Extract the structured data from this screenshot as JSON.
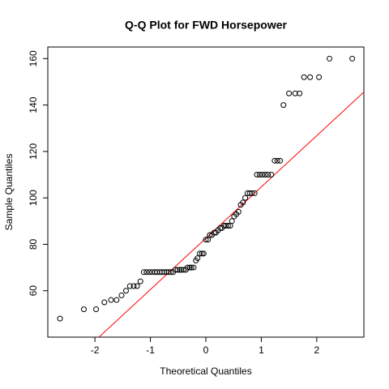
{
  "chart_data": {
    "type": "scatter",
    "title": "Q-Q Plot for FWD Horsepower",
    "xlabel": "Theoretical Quantiles",
    "ylabel": "Sample Quantiles",
    "x": [
      -2.63,
      -2.2,
      -1.98,
      -1.83,
      -1.71,
      -1.61,
      -1.52,
      -1.44,
      -1.37,
      -1.3,
      -1.24,
      -1.18,
      -1.12,
      -1.07,
      -1.02,
      -0.97,
      -0.92,
      -0.88,
      -0.83,
      -0.79,
      -0.75,
      -0.71,
      -0.67,
      -0.63,
      -0.59,
      -0.55,
      -0.51,
      -0.47,
      -0.44,
      -0.4,
      -0.36,
      -0.33,
      -0.29,
      -0.26,
      -0.22,
      -0.18,
      -0.15,
      -0.11,
      -0.07,
      -0.04,
      0.0,
      0.04,
      0.07,
      0.11,
      0.15,
      0.18,
      0.22,
      0.26,
      0.29,
      0.33,
      0.36,
      0.4,
      0.44,
      0.47,
      0.51,
      0.55,
      0.59,
      0.63,
      0.67,
      0.71,
      0.75,
      0.79,
      0.83,
      0.88,
      0.92,
      0.97,
      1.02,
      1.07,
      1.12,
      1.18,
      1.24,
      1.29,
      1.34,
      1.4,
      1.5,
      1.61,
      1.69,
      1.77,
      1.88,
      2.04,
      2.23,
      2.64
    ],
    "y": [
      48,
      52,
      52,
      55,
      56,
      56,
      58,
      60,
      62,
      62,
      62,
      64,
      68,
      68,
      68,
      68,
      68,
      68,
      68,
      68,
      68,
      68,
      68,
      68,
      68,
      69,
      69,
      69,
      69,
      69,
      69,
      70,
      70,
      70,
      70,
      73,
      74,
      76,
      76,
      76,
      82,
      82,
      84,
      84,
      85,
      85,
      86,
      87,
      87,
      88,
      88,
      88,
      88,
      90,
      92,
      93,
      94,
      97,
      98,
      100,
      102,
      102,
      102,
      102,
      110,
      110,
      110,
      110,
      110,
      110,
      116,
      116,
      116,
      140,
      145,
      145,
      145,
      152,
      152,
      152,
      160,
      160
    ],
    "color": "#000000",
    "reference_line": {
      "intercept": 82.6,
      "slope": 22.1,
      "color": "#ff0000"
    },
    "xlim": [
      -2.85,
      2.85
    ],
    "ylim": [
      40,
      165
    ],
    "xticks": [
      -2,
      -1,
      0,
      1,
      2
    ],
    "yticks": [
      60,
      80,
      100,
      120,
      140,
      160
    ]
  }
}
